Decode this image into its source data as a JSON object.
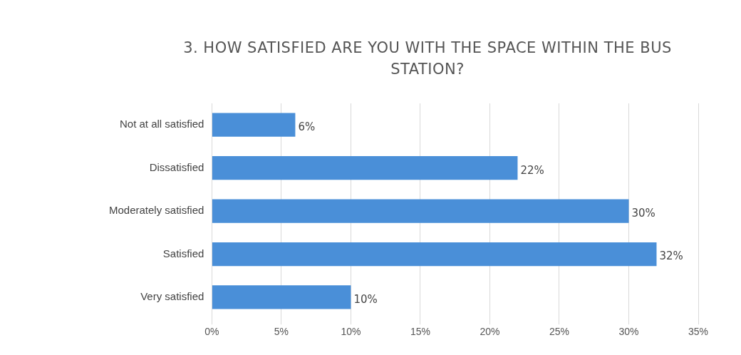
{
  "chart_data": {
    "type": "bar",
    "orientation": "horizontal",
    "title": "3. HOW SATISFIED ARE YOU WITH THE SPACE WITHIN THE BUS STATION?",
    "categories": [
      "Not at all satisfied",
      "Dissatisfied",
      "Moderately satisfied",
      "Satisfied",
      "Very satisfied"
    ],
    "values": [
      6,
      22,
      30,
      32,
      10
    ],
    "value_labels": [
      "6%",
      "22%",
      "30%",
      "32%",
      "10%"
    ],
    "color": "#4a8fd8",
    "xlim": [
      0,
      35
    ],
    "xticks": [
      {
        "value": 0,
        "label": "0%"
      },
      {
        "value": 5,
        "label": "5%"
      },
      {
        "value": 10,
        "label": "10%"
      },
      {
        "value": 15,
        "label": "15%"
      },
      {
        "value": 20,
        "label": "20%"
      },
      {
        "value": 25,
        "label": "25%"
      },
      {
        "value": 30,
        "label": "30%"
      },
      {
        "value": 35,
        "label": "35%"
      }
    ],
    "grid": "x",
    "legend": false
  }
}
